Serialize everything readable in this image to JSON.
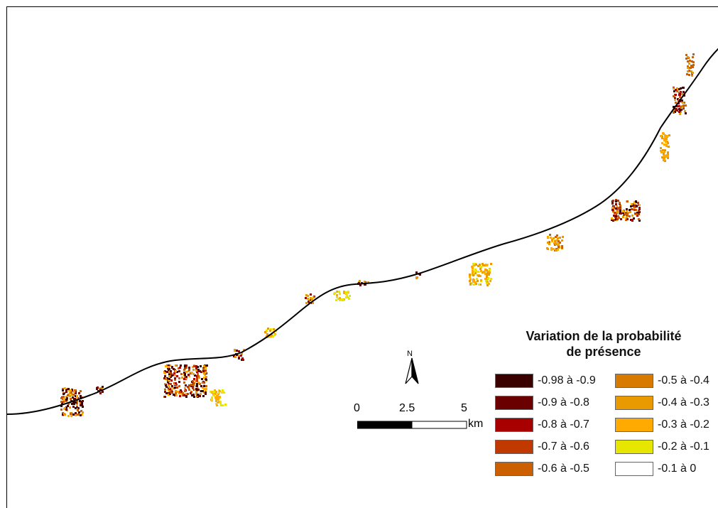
{
  "legend": {
    "title_line1": "Variation de la probabilité",
    "title_line2": "de présence",
    "classes": [
      {
        "label": "-0.98 à -0.9",
        "color": "#3a0000"
      },
      {
        "label": "-0.9 à -0.8",
        "color": "#6b0000"
      },
      {
        "label": "-0.8 à -0.7",
        "color": "#a80000"
      },
      {
        "label": "-0.7 à -0.6",
        "color": "#c03a00"
      },
      {
        "label": "-0.6 à -0.5",
        "color": "#cc5f00"
      },
      {
        "label": "-0.5 à -0.4",
        "color": "#d87a00"
      },
      {
        "label": "-0.4 à -0.3",
        "color": "#e89a00"
      },
      {
        "label": "-0.3 à -0.2",
        "color": "#ffaa00"
      },
      {
        "label": "-0.2 à -0.1",
        "color": "#e6e600"
      },
      {
        "label": "-0.1 à 0",
        "color": "#ffffff"
      }
    ]
  },
  "north_arrow": {
    "label": "N",
    "icon": "north-arrow-icon"
  },
  "scalebar": {
    "ticks": [
      "0",
      "2.5",
      "5"
    ],
    "unit": "km"
  }
}
